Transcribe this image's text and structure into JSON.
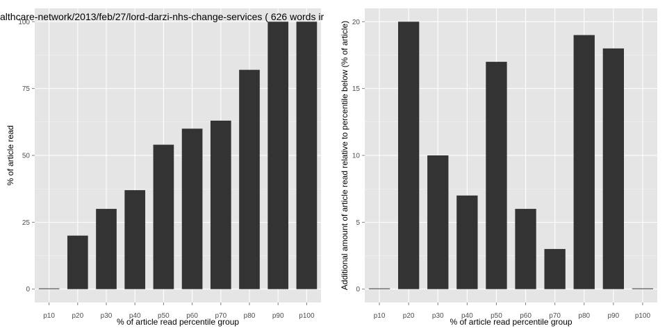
{
  "chart_data": [
    {
      "type": "bar",
      "title": "althcare-network/2013/feb/27/lord-darzi-nhs-change-services ( 626 words ir",
      "xlabel": "% of article read percentile group",
      "ylabel": "% of article read",
      "categories": [
        "p10",
        "p20",
        "p30",
        "p40",
        "p50",
        "p60",
        "p70",
        "p80",
        "p90",
        "p100"
      ],
      "values": [
        0,
        20,
        30,
        37,
        54,
        60,
        63,
        82,
        100,
        100
      ],
      "ylim": [
        -5,
        105
      ],
      "yticks": [
        0,
        25,
        50,
        75,
        100
      ],
      "grid": true,
      "colors": {
        "bar": "#333333",
        "panel": "#e5e5e5",
        "grid_major": "#ffffff",
        "grid_minor": "#f2f2f2"
      }
    },
    {
      "type": "bar",
      "title": "",
      "xlabel": "% of article read percentile group",
      "ylabel": "Additional amount of article read relative to percentile below (% of article)",
      "categories": [
        "p10",
        "p20",
        "p30",
        "p40",
        "p50",
        "p60",
        "p70",
        "p80",
        "p90",
        "p100"
      ],
      "values": [
        0,
        20,
        10,
        7,
        17,
        6,
        3,
        19,
        18,
        0
      ],
      "ylim": [
        -1,
        21
      ],
      "yticks": [
        0,
        5,
        10,
        15,
        20
      ],
      "grid": true,
      "colors": {
        "bar": "#333333",
        "panel": "#e5e5e5",
        "grid_major": "#ffffff",
        "grid_minor": "#f2f2f2"
      }
    }
  ]
}
